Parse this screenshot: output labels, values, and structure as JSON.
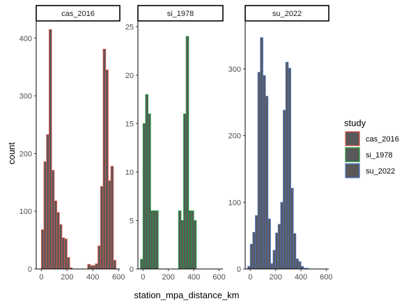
{
  "chart_data": {
    "type": "bar",
    "subtype": "faceted-histogram",
    "xlabel": "station_mpa_distance_km",
    "ylabel": "count",
    "x_ticks": [
      0,
      200,
      400,
      600
    ],
    "bar_fill": "#595959",
    "grid": false,
    "facet_scales": "free_y",
    "legend": {
      "title": "study",
      "position": "right",
      "entries": [
        {
          "label": "cas_2016",
          "color": "#E0574A"
        },
        {
          "label": "si_1978",
          "color": "#1E9E3A"
        },
        {
          "label": "su_2022",
          "color": "#4A74C9"
        }
      ]
    },
    "panels": [
      {
        "label": "cas_2016",
        "color": "#E0574A",
        "xlim": [
          -40,
          610
        ],
        "ylim": [
          0,
          430
        ],
        "y_ticks": [
          0,
          100,
          200,
          300,
          400
        ],
        "bin_width": 20,
        "bins_start": 0,
        "bins_end": 600,
        "bars": [
          {
            "x": 0,
            "y": 68
          },
          {
            "x": 20,
            "y": 186
          },
          {
            "x": 40,
            "y": 233
          },
          {
            "x": 60,
            "y": 415
          },
          {
            "x": 80,
            "y": 171
          },
          {
            "x": 100,
            "y": 118
          },
          {
            "x": 120,
            "y": 98
          },
          {
            "x": 140,
            "y": 77
          },
          {
            "x": 160,
            "y": 54
          },
          {
            "x": 180,
            "y": 52
          },
          {
            "x": 200,
            "y": 20
          },
          {
            "x": 220,
            "y": 2
          },
          {
            "x": 360,
            "y": 8
          },
          {
            "x": 380,
            "y": 6
          },
          {
            "x": 400,
            "y": 6
          },
          {
            "x": 420,
            "y": 9
          },
          {
            "x": 440,
            "y": 40
          },
          {
            "x": 460,
            "y": 143
          },
          {
            "x": 480,
            "y": 381
          },
          {
            "x": 500,
            "y": 345
          },
          {
            "x": 520,
            "y": 153
          },
          {
            "x": 540,
            "y": 178
          },
          {
            "x": 560,
            "y": 15
          }
        ]
      },
      {
        "label": "si_1978",
        "color": "#1E9E3A",
        "xlim": [
          -40,
          630
        ],
        "ylim": [
          0,
          25.6
        ],
        "y_ticks": [
          0,
          5,
          10,
          15,
          20,
          25
        ],
        "bin_width": 20,
        "bins_start": -20,
        "bins_end": 600,
        "bars": [
          {
            "x": -20,
            "y": 1
          },
          {
            "x": 0,
            "y": 15
          },
          {
            "x": 20,
            "y": 18
          },
          {
            "x": 40,
            "y": 16
          },
          {
            "x": 60,
            "y": 6
          },
          {
            "x": 80,
            "y": 6
          },
          {
            "x": 100,
            "y": 6
          },
          {
            "x": 280,
            "y": 6
          },
          {
            "x": 300,
            "y": 5
          },
          {
            "x": 320,
            "y": 16
          },
          {
            "x": 340,
            "y": 24
          },
          {
            "x": 360,
            "y": 6
          },
          {
            "x": 380,
            "y": 6
          },
          {
            "x": 400,
            "y": 5
          }
        ]
      },
      {
        "label": "su_2022",
        "color": "#4A74C9",
        "xlim": [
          -40,
          620
        ],
        "ylim": [
          0,
          372
        ],
        "y_ticks": [
          0,
          100,
          200,
          300
        ],
        "bin_width": 20,
        "bins_start": -20,
        "bins_end": 600,
        "bars": [
          {
            "x": -20,
            "y": 4
          },
          {
            "x": 0,
            "y": 37
          },
          {
            "x": 20,
            "y": 55
          },
          {
            "x": 40,
            "y": 80
          },
          {
            "x": 60,
            "y": 295
          },
          {
            "x": 80,
            "y": 347
          },
          {
            "x": 100,
            "y": 290
          },
          {
            "x": 120,
            "y": 259
          },
          {
            "x": 140,
            "y": 75
          },
          {
            "x": 160,
            "y": 8
          },
          {
            "x": 180,
            "y": 28
          },
          {
            "x": 200,
            "y": 54
          },
          {
            "x": 220,
            "y": 67
          },
          {
            "x": 240,
            "y": 100
          },
          {
            "x": 260,
            "y": 238
          },
          {
            "x": 280,
            "y": 310
          },
          {
            "x": 300,
            "y": 301
          },
          {
            "x": 320,
            "y": 121
          },
          {
            "x": 340,
            "y": 53
          },
          {
            "x": 360,
            "y": 15
          },
          {
            "x": 380,
            "y": 11
          },
          {
            "x": 400,
            "y": 4
          },
          {
            "x": 420,
            "y": 1
          },
          {
            "x": 440,
            "y": 1
          }
        ]
      }
    ]
  }
}
